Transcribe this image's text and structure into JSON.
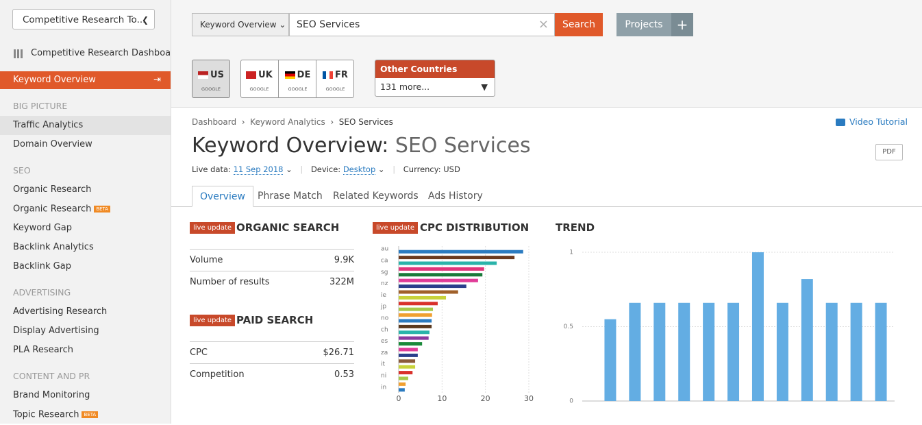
{
  "sidebar": {
    "tool_select": "Competitive Research To...",
    "dashboard": "Competitive Research Dashboard",
    "active": "Keyword Overview",
    "sections": [
      {
        "heading": "BIG PICTURE",
        "items": [
          {
            "label": "Traffic Analytics"
          },
          {
            "label": "Domain Overview"
          }
        ]
      },
      {
        "heading": "SEO",
        "items": [
          {
            "label": "Organic Research"
          },
          {
            "label": "Organic Research",
            "badge": "BETA"
          },
          {
            "label": "Keyword Gap"
          },
          {
            "label": "Backlink Analytics"
          },
          {
            "label": "Backlink Gap"
          }
        ]
      },
      {
        "heading": "ADVERTISING",
        "items": [
          {
            "label": "Advertising Research"
          },
          {
            "label": "Display Advertising"
          },
          {
            "label": "PLA Research"
          }
        ]
      },
      {
        "heading": "CONTENT AND PR",
        "items": [
          {
            "label": "Brand Monitoring"
          },
          {
            "label": "Topic Research",
            "badge": "BETA"
          }
        ]
      }
    ]
  },
  "search": {
    "mode": "Keyword Overview",
    "query": "SEO Services",
    "button": "Search",
    "projects": "Projects"
  },
  "countries": [
    {
      "code": "US",
      "engine": "GOOGLE"
    },
    {
      "code": "UK",
      "engine": "GOOGLE"
    },
    {
      "code": "DE",
      "engine": "GOOGLE"
    },
    {
      "code": "FR",
      "engine": "GOOGLE"
    }
  ],
  "other_countries": {
    "title": "Other Countries",
    "more": "131 more..."
  },
  "breadcrumb": [
    "Dashboard",
    "Keyword Analytics",
    "SEO Services"
  ],
  "video_tutorial": "Video Tutorial",
  "page_title": {
    "prefix": "Keyword Overview:",
    "keyword": "SEO Services"
  },
  "pdf": "PDF",
  "meta": {
    "live_label": "Live data:",
    "live_value": "11 Sep 2018",
    "device_label": "Device:",
    "device_value": "Desktop",
    "currency": "Currency: USD"
  },
  "tabs": [
    "Overview",
    "Phrase Match",
    "Related Keywords",
    "Ads History"
  ],
  "organic": {
    "badge": "live update",
    "heading": "ORGANIC SEARCH",
    "rows": [
      [
        "Volume",
        "9.9K"
      ],
      [
        "Number of results",
        "322M"
      ]
    ]
  },
  "paid": {
    "badge": "live update",
    "heading": "PAID SEARCH",
    "rows": [
      [
        "CPC",
        "$26.71"
      ],
      [
        "Competition",
        "0.53"
      ]
    ]
  },
  "chart_badge": "live update",
  "chart_data": [
    {
      "type": "hbar",
      "title": "CPC DISTRIBUTION",
      "categories": [
        "au",
        null,
        "ca",
        null,
        "sg",
        null,
        "nz",
        null,
        "ie",
        null,
        "jp",
        null,
        "no",
        null,
        "ch",
        null,
        "es",
        null,
        "za",
        null,
        "it",
        null,
        "ni",
        null,
        "in"
      ],
      "values": [
        28.7,
        26.7,
        22.6,
        19.7,
        19.3,
        18.3,
        15.6,
        13.7,
        10.9,
        9.0,
        7.9,
        7.7,
        7.6,
        7.6,
        7.1,
        6.9,
        5.4,
        4.4,
        4.4,
        3.8,
        3.8,
        3.2,
        2.2,
        1.6,
        1.4
      ],
      "colors": [
        "#2b7bc0",
        "#6b3a1f",
        "#2ab3aa",
        "#e0357a",
        "#1a7a3a",
        "#e03c98",
        "#2b3f8c",
        "#a0602a",
        "#c8d23a",
        "#d9312b",
        "#a8c84a",
        "#f0a030",
        "#2b7bc0",
        "#5a3a1f",
        "#2ab3aa",
        "#8a3aa0",
        "#1a8a3a",
        "#e03c98",
        "#2b3f8c",
        "#8a5a3a",
        "#c8d23a",
        "#d9312b",
        "#a8c84a",
        "#f0a030",
        "#2b7bc0"
      ],
      "xlim": [
        0,
        30
      ],
      "xticks": [
        0,
        10,
        20,
        30
      ],
      "grid": true
    },
    {
      "type": "bar",
      "title": "TREND",
      "values": [
        0.55,
        0.66,
        0.66,
        0.66,
        0.66,
        0.66,
        1,
        0.66,
        0.82,
        0.66,
        0.66,
        0.66
      ],
      "color": "#63ade3",
      "ylim": [
        0,
        1
      ],
      "yticks": [
        0,
        0.5,
        1
      ],
      "grid": true
    }
  ]
}
